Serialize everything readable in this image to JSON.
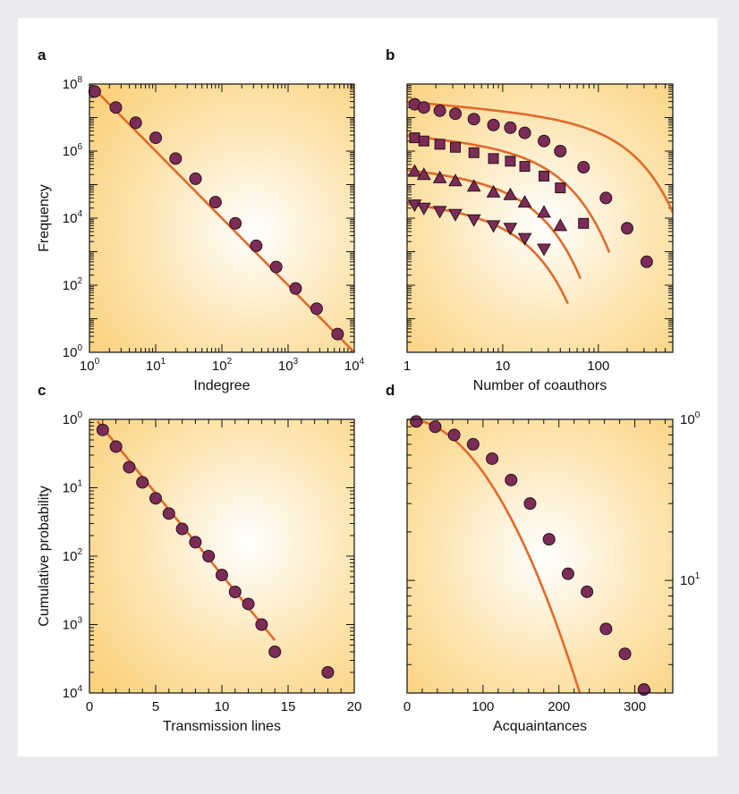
{
  "colors": {
    "background": "#e9ebee",
    "panel_center": "#ffffff",
    "panel_edge": "#fcd27e",
    "curve": "#e06a2a",
    "marker_fill": "#7b2d57",
    "marker_stroke": "#2a0f1c"
  },
  "chart_data": [
    {
      "panel": "a",
      "type": "scatter",
      "xlabel": "Indegree",
      "ylabel": "Frequency",
      "xscale": "log",
      "yscale": "log",
      "xlim": [
        1,
        10000
      ],
      "ylim": [
        1,
        100000000
      ],
      "xticks": [
        {
          "base": "10",
          "exp": "0",
          "value": 1
        },
        {
          "base": "10",
          "exp": "1",
          "value": 10
        },
        {
          "base": "10",
          "exp": "2",
          "value": 100
        },
        {
          "base": "10",
          "exp": "3",
          "value": 1000
        },
        {
          "base": "10",
          "exp": "4",
          "value": 10000
        }
      ],
      "yticks": [
        {
          "base": "10",
          "exp": "0",
          "value": 1
        },
        {
          "base": "10",
          "exp": "2",
          "value": 100
        },
        {
          "base": "10",
          "exp": "4",
          "value": 10000
        },
        {
          "base": "10",
          "exp": "6",
          "value": 1000000
        },
        {
          "base": "10",
          "exp": "8",
          "value": 100000000
        }
      ],
      "series": [
        {
          "marker": "circle",
          "x": [
            1.2,
            2.5,
            5,
            10,
            20,
            40,
            80,
            160,
            330,
            660,
            1300,
            2700,
            5600
          ],
          "y": [
            60000000,
            20000000,
            7000000,
            2500000,
            600000,
            150000,
            30000,
            7000,
            1500,
            350,
            80,
            20,
            3.5
          ]
        }
      ],
      "fits": [
        {
          "kind": "power",
          "a": 100000000,
          "k": 2.0,
          "x_from": 1.2,
          "x_to": 10000
        }
      ]
    },
    {
      "panel": "b",
      "type": "scatter",
      "xlabel": "Number of coauthors",
      "ylabel": "",
      "xscale": "log",
      "yscale": "log",
      "xlim": [
        1,
        600
      ],
      "ylim": [
        1,
        100000000
      ],
      "xticks": [
        {
          "base": "1",
          "exp": "",
          "value": 1
        },
        {
          "base": "10",
          "exp": "",
          "value": 10
        },
        {
          "base": "100",
          "exp": "",
          "value": 100
        }
      ],
      "yticks": [],
      "series": [
        {
          "marker": "circle",
          "x": [
            1.2,
            1.5,
            2.2,
            3.2,
            5,
            8,
            12,
            17,
            27,
            40,
            70,
            120,
            200,
            320
          ],
          "y": [
            25000000,
            20000000,
            16000000,
            13000000,
            9000000,
            6000000,
            5000000,
            3500000,
            2000000,
            1000000,
            330000,
            40000,
            5000,
            500
          ]
        },
        {
          "marker": "square",
          "x": [
            1.2,
            1.5,
            2.2,
            3.2,
            5,
            8,
            12,
            17,
            27,
            40,
            70
          ],
          "y": [
            2500000,
            2000000,
            1600000,
            1300000,
            900000,
            600000,
            500000,
            350000,
            180000,
            80000,
            7000
          ]
        },
        {
          "marker": "triangle-up",
          "x": [
            1.2,
            1.5,
            2.2,
            3.2,
            5,
            8,
            12,
            17,
            27,
            40
          ],
          "y": [
            250000,
            200000,
            160000,
            130000,
            90000,
            60000,
            50000,
            30000,
            15000,
            6000
          ]
        },
        {
          "marker": "triangle-down",
          "x": [
            1.2,
            1.5,
            2.2,
            3.2,
            5,
            8,
            12,
            17,
            27
          ],
          "y": [
            25000,
            20000,
            16000,
            13000,
            9000,
            6000,
            5000,
            2500,
            1200
          ]
        }
      ],
      "fits": [
        {
          "kind": "power_cutoff",
          "a": 30000000,
          "k": 0.25,
          "x0": 100,
          "x_from": 1,
          "x_to": 600
        },
        {
          "kind": "power_cutoff",
          "a": 3000000,
          "k": 0.25,
          "x0": 19,
          "x_from": 1,
          "x_to": 130
        },
        {
          "kind": "power_cutoff",
          "a": 300000,
          "k": 0.25,
          "x0": 10,
          "x_from": 1,
          "x_to": 65
        },
        {
          "kind": "power_cutoff",
          "a": 30000,
          "k": 0.25,
          "x0": 8,
          "x_from": 1,
          "x_to": 48
        }
      ]
    },
    {
      "panel": "c",
      "type": "scatter",
      "xlabel": "Transmission lines",
      "ylabel": "Cumulative probability",
      "xscale": "linear",
      "yscale": "log",
      "xlim": [
        0,
        20
      ],
      "ylim": [
        0.0001,
        1
      ],
      "xticks": [
        {
          "base": "0",
          "exp": "",
          "value": 0
        },
        {
          "base": "5",
          "exp": "",
          "value": 5
        },
        {
          "base": "10",
          "exp": "",
          "value": 10
        },
        {
          "base": "15",
          "exp": "",
          "value": 15
        },
        {
          "base": "20",
          "exp": "",
          "value": 20
        }
      ],
      "yticks": [
        {
          "base": "10",
          "exp": "0",
          "value": 1
        },
        {
          "base": "10",
          "exp": "1",
          "value": 0.1
        },
        {
          "base": "10",
          "exp": "2",
          "value": 0.01
        },
        {
          "base": "10",
          "exp": "3",
          "value": 0.001
        },
        {
          "base": "10",
          "exp": "4",
          "value": 0.0001
        }
      ],
      "series": [
        {
          "marker": "circle",
          "x": [
            1,
            2,
            3,
            4,
            5,
            6,
            7,
            8,
            9,
            10,
            11,
            12,
            13,
            14,
            18
          ],
          "y": [
            0.7,
            0.4,
            0.2,
            0.12,
            0.07,
            0.042,
            0.025,
            0.016,
            0.01,
            0.0053,
            0.003,
            0.002,
            0.001,
            0.0004,
            0.0002
          ]
        }
      ],
      "fits": [
        {
          "kind": "exponential",
          "a": 1.3,
          "b": 0.55,
          "x_from": 0.6,
          "x_to": 14
        }
      ]
    },
    {
      "panel": "d",
      "type": "scatter",
      "xlabel": "Acquaintances",
      "ylabel": "",
      "xscale": "linear",
      "yscale": "log",
      "yaxis_side": "right",
      "xlim": [
        0,
        350
      ],
      "ylim": [
        0.02,
        1
      ],
      "xticks": [
        {
          "base": "0",
          "exp": "",
          "value": 0
        },
        {
          "base": "100",
          "exp": "",
          "value": 100
        },
        {
          "base": "200",
          "exp": "",
          "value": 200
        },
        {
          "base": "300",
          "exp": "",
          "value": 300
        }
      ],
      "yticks": [
        {
          "base": "10",
          "exp": "0",
          "value": 1
        },
        {
          "base": "10",
          "exp": "1",
          "value": 0.1
        }
      ],
      "series": [
        {
          "marker": "circle",
          "x": [
            12,
            37,
            62,
            87,
            112,
            137,
            162,
            187,
            212,
            237,
            262,
            287,
            312
          ],
          "y": [
            0.97,
            0.9,
            0.8,
            0.7,
            0.57,
            0.42,
            0.3,
            0.18,
            0.11,
            0.085,
            0.05,
            0.035,
            0.021
          ]
        }
      ],
      "fits": [
        {
          "kind": "gaussian_tail",
          "a": 1.0,
          "s": 115,
          "x_from": 0,
          "x_to": 320
        }
      ]
    }
  ]
}
